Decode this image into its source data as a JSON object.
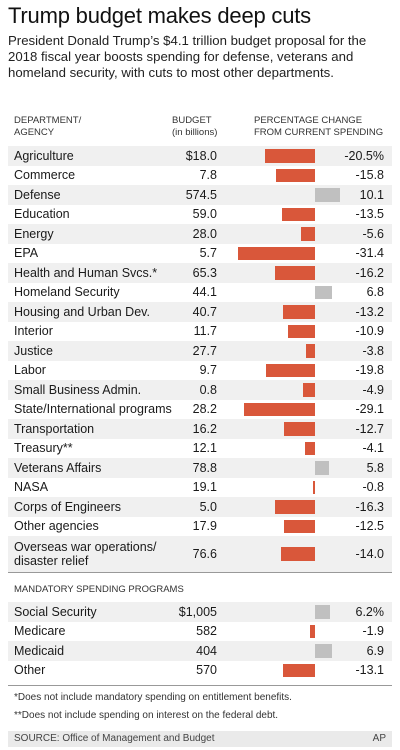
{
  "title": "Trump budget makes deep cuts",
  "subtitle": "President Donald Trump’s $4.1 trillion budget proposal for the 2018 fiscal year boosts spending for defense, veterans and homeland security, with cuts to most other departments.",
  "headers": {
    "department": "DEPARTMENT/\nAGENCY",
    "budget": "BUDGET\n(in billions)",
    "change": "PERCENTAGE CHANGE\nFROM CURRENT SPENDING"
  },
  "mandatory_title": "MANDATORY SPENDING PROGRAMS",
  "notes": [
    "*Does not include mandatory spending on entitlement benefits.",
    "**Does not include spending on interest on the federal debt."
  ],
  "source": "SOURCE: Office of Management and Budget",
  "credit": "AP",
  "colors": {
    "negative": "#d9573a",
    "positive": "#c0c0c0",
    "stripe": "#f0f0f0"
  },
  "chart_data": [
    {
      "type": "bar",
      "title": "Trump budget makes deep cuts",
      "categories": [
        "Agriculture",
        "Commerce",
        "Defense",
        "Education",
        "Energy",
        "EPA",
        "Health and Human Svcs.*",
        "Homeland Security",
        "Housing and Urban Dev.",
        "Interior",
        "Justice",
        "Labor",
        "Small Business Admin.",
        "State/International programs",
        "Transportation",
        "Treasury**",
        "Veterans Affairs",
        "NASA",
        "Corps of Engineers",
        "Other agencies",
        "Overseas war operations/\ndisaster relief"
      ],
      "budget_labels": [
        "$18.0",
        "7.8",
        "574.5",
        "59.0",
        "28.0",
        "5.7",
        "65.3",
        "44.1",
        "40.7",
        "11.7",
        "27.7",
        "9.7",
        "0.8",
        "28.2",
        "16.2",
        "12.1",
        "78.8",
        "19.1",
        "5.0",
        "17.9",
        "76.6"
      ],
      "change_labels": [
        "-20.5%",
        "-15.8",
        "10.1",
        "-13.5",
        "-5.6",
        "-31.4",
        "-16.2",
        "6.8",
        "-13.2",
        "-10.9",
        "-3.8",
        "-19.8",
        "-4.9",
        "-29.1",
        "-12.7",
        "-4.1",
        "5.8",
        "-0.8",
        "-16.3",
        "-12.5",
        "-14.0"
      ],
      "values": [
        -20.5,
        -15.8,
        10.1,
        -13.5,
        -5.6,
        -31.4,
        -16.2,
        6.8,
        -13.2,
        -10.9,
        -3.8,
        -19.8,
        -4.9,
        -29.1,
        -12.7,
        -4.1,
        5.8,
        -0.8,
        -16.3,
        -12.5,
        -14.0
      ]
    },
    {
      "type": "bar",
      "title": "MANDATORY SPENDING PROGRAMS",
      "categories": [
        "Social Security",
        "Medicare",
        "Medicaid",
        "Other"
      ],
      "budget_labels": [
        "$1,005",
        "582",
        "404",
        "570"
      ],
      "change_labels": [
        "6.2%",
        "-1.9",
        "6.9",
        "-13.1"
      ],
      "values": [
        6.2,
        -1.9,
        6.9,
        -13.1
      ]
    }
  ]
}
